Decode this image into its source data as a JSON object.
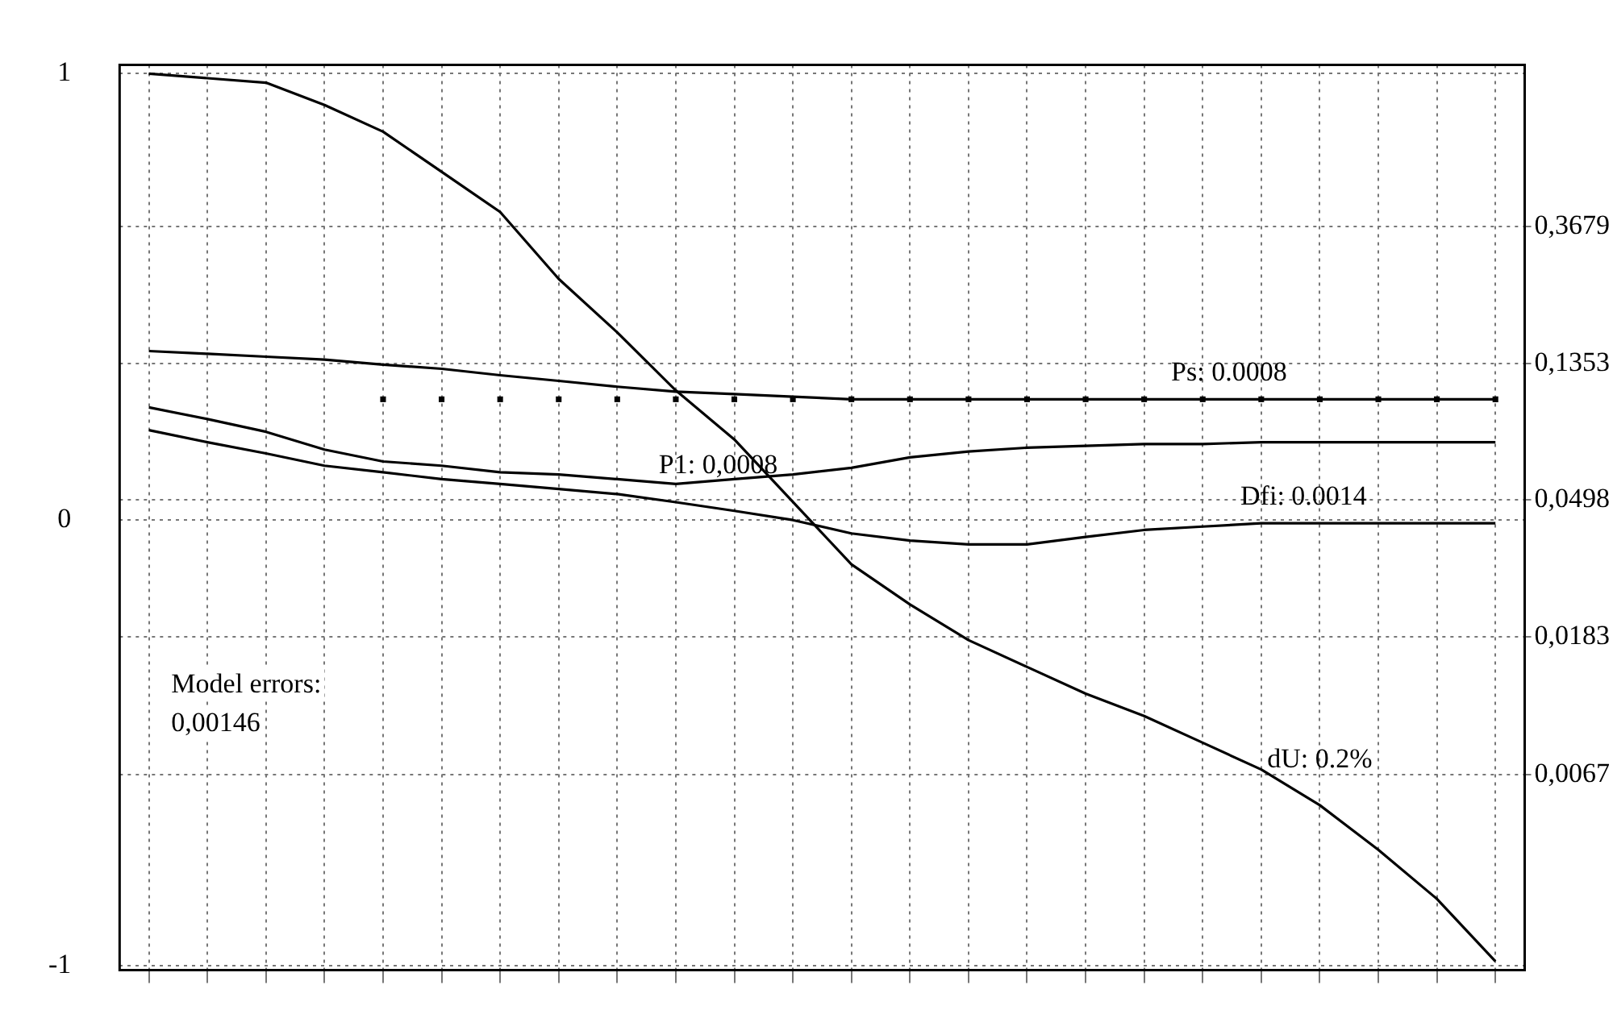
{
  "chart_data": {
    "type": "line",
    "categories": [
      null,
      null,
      null,
      null,
      null,
      null,
      null,
      null,
      null,
      null,
      null,
      null,
      null,
      null,
      null,
      null,
      null,
      null,
      null,
      null,
      null,
      null,
      null,
      null
    ],
    "series": [
      {
        "name": "dU: 0.2%",
        "color": "#000000",
        "values": [
          1.0,
          0.99,
          0.98,
          0.93,
          0.87,
          0.78,
          0.69,
          0.54,
          0.42,
          0.29,
          0.18,
          0.04,
          -0.1,
          -0.19,
          -0.27,
          -0.33,
          -0.39,
          -0.44,
          -0.5,
          -0.56,
          -0.64,
          -0.74,
          -0.85,
          -0.99
        ]
      },
      {
        "name": "Ps: 0.0008",
        "axis": "y2",
        "color": "#000000",
        "values": [
          0.148,
          0.145,
          0.142,
          0.139,
          0.134,
          0.13,
          0.124,
          0.119,
          0.114,
          0.11,
          0.108,
          0.106,
          0.104,
          0.104,
          0.104,
          0.104,
          0.104,
          0.104,
          0.104,
          0.104,
          0.104,
          0.104,
          0.104,
          0.104
        ]
      },
      {
        "type": "scatter",
        "marker": "square",
        "axis": "y2",
        "color": "#000000",
        "values": [
          null,
          null,
          null,
          null,
          0.104,
          0.104,
          0.104,
          0.104,
          0.104,
          0.104,
          0.104,
          0.104,
          0.104,
          0.104,
          0.104,
          0.104,
          0.104,
          0.104,
          0.104,
          0.104,
          0.104,
          0.104,
          0.104,
          0.104
        ]
      },
      {
        "name": "P1: 0,0008",
        "axis": "y2",
        "color": "#000000",
        "values": [
          0.098,
          0.09,
          0.082,
          0.072,
          0.066,
          0.064,
          0.061,
          0.06,
          0.058,
          0.056,
          0.058,
          0.06,
          0.063,
          0.068,
          0.071,
          0.073,
          0.074,
          0.075,
          0.075,
          0.076,
          0.076,
          0.076,
          0.076,
          0.076
        ]
      },
      {
        "name": "Dfi: 0.0014",
        "axis": "y2",
        "color": "#000000",
        "values": [
          0.083,
          0.076,
          0.07,
          0.064,
          0.061,
          0.058,
          0.056,
          0.054,
          0.052,
          0.049,
          0.046,
          0.043,
          0.039,
          0.037,
          0.036,
          0.036,
          0.038,
          0.04,
          0.041,
          0.042,
          0.042,
          0.042,
          0.042,
          0.042
        ]
      }
    ],
    "ylim": [
      -1.01,
      1.02
    ],
    "yticks": [
      1,
      0,
      -1
    ],
    "y2lim": [
      0.0016,
      1.2
    ],
    "y2ticks": [
      {
        "value": 0.3679,
        "label": "0,3679"
      },
      {
        "value": 0.1353,
        "label": "0,1353"
      },
      {
        "value": 0.0498,
        "label": "0,0498"
      },
      {
        "value": 0.0183,
        "label": "0,0183"
      },
      {
        "value": 0.0067,
        "label": "0,0067"
      }
    ],
    "log": "y2",
    "grid": true,
    "legend": false,
    "tick_labels": "y",
    "marker": "none",
    "line_style": "solid",
    "annotations": [
      "Model errors:\n0,00146"
    ]
  }
}
